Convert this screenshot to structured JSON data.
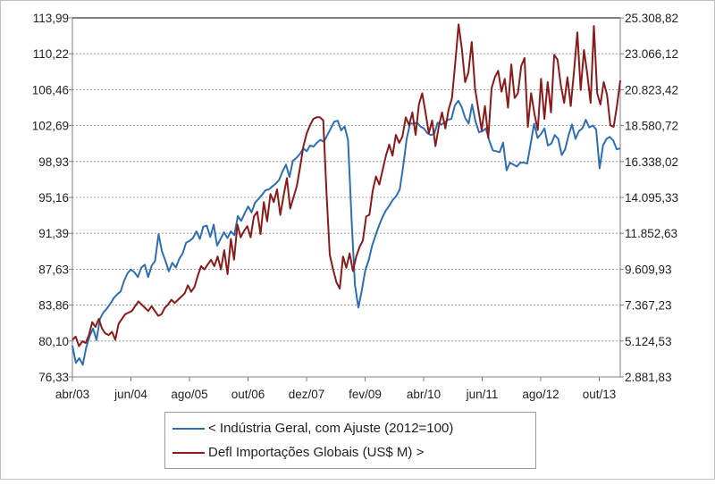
{
  "chart_data": {
    "type": "line",
    "x_tick_labels": [
      "abr/03",
      "jun/04",
      "ago/05",
      "out/06",
      "dez/07",
      "fev/09",
      "abr/10",
      "jun/11",
      "ago/12",
      "out/13"
    ],
    "y_left": {
      "ticks": [
        "76,33",
        "80,10",
        "83,86",
        "87,63",
        "91,39",
        "95,16",
        "98,93",
        "102,69",
        "106,46",
        "110,22",
        "113,99"
      ],
      "range": [
        76.33,
        113.99
      ]
    },
    "y_right": {
      "ticks": [
        "2.881,83",
        "5.124,53",
        "7.367,23",
        "9.609,93",
        "11.852,63",
        "14.095,33",
        "16.338,02",
        "18.580,72",
        "20.823,42",
        "23.066,12",
        "25.308,82"
      ],
      "range": [
        2881.83,
        25308.82
      ]
    },
    "grid": true,
    "legend_position": "bottom",
    "colors": {
      "series1": "#2e6eb5",
      "series2": "#8b1a1a"
    },
    "series": [
      {
        "name": "< Indústria Geral, com Ajuste (2012=100)",
        "axis": "left",
        "values": [
          79.6,
          77.8,
          78.3,
          77.6,
          79.4,
          80.6,
          81.4,
          80.2,
          82.4,
          83.1,
          83.5,
          84.0,
          84.6,
          85.0,
          85.3,
          86.4,
          87.2,
          87.6,
          87.3,
          86.8,
          87.8,
          88.1,
          86.8,
          88.0,
          88.5,
          91.3,
          89.5,
          88.5,
          87.4,
          88.3,
          87.8,
          88.7,
          89.3,
          90.4,
          90.6,
          90.9,
          91.6,
          90.8,
          92.1,
          92.2,
          91.0,
          92.3,
          90.1,
          90.8,
          91.5,
          90.9,
          91.6,
          91.2,
          93.2,
          92.7,
          93.5,
          94.2,
          93.6,
          94.6,
          95.0,
          95.4,
          95.9,
          96.0,
          96.3,
          96.6,
          97.0,
          97.9,
          98.6,
          97.3,
          99.0,
          99.3,
          99.7,
          100.3,
          100.0,
          100.6,
          100.5,
          100.9,
          101.2,
          101.0,
          101.7,
          102.4,
          103.1,
          103.2,
          102.2,
          102.6,
          101.2,
          93.0,
          86.0,
          83.6,
          85.4,
          87.5,
          88.6,
          90.1,
          91.2,
          92.2,
          93.1,
          93.8,
          94.3,
          94.9,
          95.3,
          96.0,
          98.4,
          101.3,
          102.9,
          102.9,
          103.0,
          102.6,
          102.4,
          101.9,
          101.7,
          101.8,
          103.0,
          102.8,
          103.0,
          103.3,
          103.4,
          104.8,
          105.3,
          104.6,
          103.5,
          102.9,
          104.9,
          103.1,
          102.0,
          102.1,
          102.4,
          101.1,
          100.1,
          100.0,
          99.9,
          100.9,
          98.0,
          98.8,
          98.6,
          98.4,
          98.8,
          98.8,
          98.7,
          100.8,
          102.9,
          101.4,
          101.8,
          102.4,
          100.6,
          100.8,
          101.7,
          101.3,
          99.6,
          100.2,
          101.7,
          102.8,
          101.3,
          102.1,
          102.4,
          103.3,
          102.5,
          102.7,
          102.3,
          98.2,
          100.6,
          101.3,
          101.5,
          101.1,
          100.2,
          100.3
        ]
      },
      {
        "name": "Defl Importações Globais (US$ M) >",
        "axis": "right",
        "values": [
          5200,
          5400,
          4800,
          5100,
          5000,
          5500,
          6300,
          6000,
          6500,
          5900,
          5600,
          5500,
          5700,
          5200,
          6200,
          6500,
          6800,
          6900,
          7000,
          7300,
          7600,
          7400,
          7200,
          7000,
          7300,
          7000,
          6700,
          6800,
          7200,
          7400,
          7700,
          7500,
          7700,
          7900,
          8100,
          8600,
          8200,
          8500,
          9200,
          9800,
          9600,
          9900,
          10200,
          9800,
          10400,
          9600,
          10800,
          9300,
          11500,
          10200,
          12400,
          11600,
          12000,
          12300,
          11600,
          12900,
          13200,
          11800,
          13800,
          12600,
          14300,
          13800,
          14600,
          13000,
          14200,
          15300,
          13400,
          14100,
          14800,
          16000,
          17300,
          18100,
          18600,
          19000,
          19100,
          19100,
          18900,
          14400,
          10500,
          9600,
          8800,
          8400,
          10400,
          9700,
          10600,
          9500,
          10400,
          11000,
          11400,
          12900,
          13000,
          14500,
          15400,
          14900,
          15800,
          16700,
          17400,
          16700,
          18000,
          17500,
          17900,
          19100,
          18600,
          19400,
          18000,
          19900,
          20600,
          19400,
          18100,
          18900,
          17300,
          18500,
          19400,
          18400,
          19600,
          20300,
          22500,
          24900,
          23400,
          21300,
          21900,
          23800,
          20900,
          19600,
          18300,
          19800,
          17800,
          20900,
          21600,
          22000,
          20700,
          21500,
          19700,
          22400,
          20300,
          20600,
          22300,
          22800,
          18500,
          20600,
          19300,
          18300,
          21500,
          19000,
          21300,
          19400,
          23000,
          22700,
          21100,
          20000,
          21600,
          19800,
          22000,
          24400,
          20800,
          23300,
          21800,
          20000,
          24800,
          20600,
          19900,
          21300,
          20500,
          18600,
          18500,
          19800,
          21400
        ]
      }
    ]
  }
}
